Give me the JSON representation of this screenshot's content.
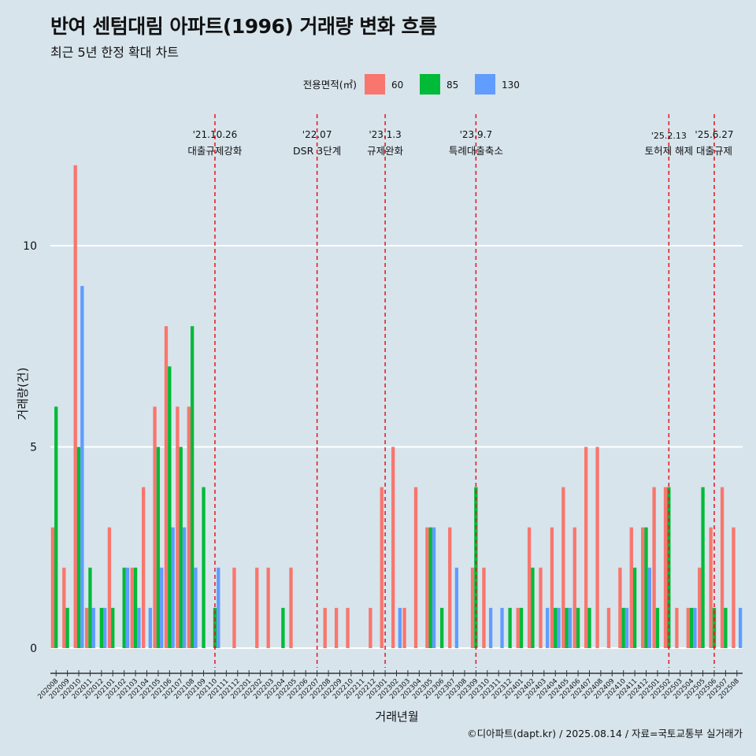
{
  "title": "반여 센텀대림 아파트(1996) 거래량 변화 흐름",
  "subtitle": "최근 5년 한정 확대 차트",
  "caption": "©디아파트(dapt.kr) / 2025.08.14 / 자료=국토교통부 실거래가",
  "colors": {
    "background": "#d7e4ec",
    "s60": "#f8766d",
    "s85": "#00ba38",
    "s130": "#619cff",
    "policy_line": "#e8141a",
    "grid": "#ffffff"
  },
  "chart_data": {
    "type": "bar",
    "xlabel": "거래년월",
    "ylabel": "거래량(건)",
    "ylim": [
      -0.5,
      12.5
    ],
    "yticks": [
      0,
      5,
      10
    ],
    "legend": {
      "title": "전용면적(㎡)",
      "position": "top"
    },
    "categories": [
      "202008",
      "202009",
      "202010",
      "202011",
      "202012",
      "202101",
      "202102",
      "202103",
      "202104",
      "202105",
      "202106",
      "202107",
      "202108",
      "202109",
      "202110",
      "202111",
      "202112",
      "202201",
      "202202",
      "202203",
      "202204",
      "202205",
      "202206",
      "202207",
      "202208",
      "202209",
      "202210",
      "202211",
      "202212",
      "202301",
      "202302",
      "202303",
      "202304",
      "202305",
      "202306",
      "202307",
      "202308",
      "202309",
      "202310",
      "202311",
      "202312",
      "202401",
      "202402",
      "202403",
      "202404",
      "202405",
      "202406",
      "202407",
      "202408",
      "202409",
      "202410",
      "202411",
      "202412",
      "202501",
      "202502",
      "202503",
      "202504",
      "202505",
      "202506",
      "202507",
      "202508"
    ],
    "series": [
      {
        "name": "60",
        "key": "s60",
        "values": [
          3,
          2,
          12,
          1,
          0,
          3,
          0,
          2,
          4,
          6,
          8,
          6,
          6,
          0,
          0,
          0,
          2,
          0,
          2,
          2,
          0,
          2,
          0,
          0,
          1,
          1,
          1,
          0,
          1,
          4,
          5,
          1,
          4,
          3,
          0,
          3,
          0,
          2,
          2,
          0,
          0,
          1,
          3,
          2,
          3,
          4,
          3,
          5,
          5,
          1,
          2,
          3,
          3,
          4,
          4,
          1,
          1,
          2,
          3,
          4,
          3
        ]
      },
      {
        "name": "85",
        "key": "s85",
        "values": [
          6,
          1,
          5,
          2,
          1,
          1,
          2,
          2,
          0,
          5,
          7,
          5,
          8,
          4,
          1,
          0,
          0,
          0,
          0,
          0,
          1,
          0,
          0,
          0,
          0,
          0,
          0,
          0,
          0,
          0,
          0,
          0,
          0,
          3,
          1,
          0,
          0,
          4,
          0,
          0,
          1,
          1,
          2,
          0,
          1,
          1,
          1,
          1,
          0,
          0,
          1,
          2,
          3,
          1,
          4,
          0,
          1,
          4,
          1,
          1,
          0
        ]
      },
      {
        "name": "130",
        "key": "s130",
        "values": [
          0,
          0,
          9,
          1,
          1,
          0,
          2,
          1,
          1,
          2,
          3,
          3,
          2,
          0,
          2,
          0,
          0,
          0,
          0,
          0,
          0,
          0,
          0,
          0,
          0,
          0,
          0,
          0,
          0,
          0,
          1,
          0,
          0,
          3,
          0,
          2,
          0,
          0,
          1,
          1,
          0,
          0,
          0,
          1,
          1,
          1,
          0,
          0,
          0,
          0,
          1,
          0,
          2,
          0,
          0,
          0,
          1,
          0,
          0,
          0,
          1
        ]
      }
    ],
    "annotations": [
      {
        "x": "202110",
        "date": "'21.10.26",
        "label": "대출규제강화"
      },
      {
        "x": "202207",
        "date": "'22.07",
        "label": "DSR 3단계"
      },
      {
        "x": "202301",
        "date": "'23.1.3",
        "label": "규제완화"
      },
      {
        "x": "202309",
        "date": "'23.9.7",
        "label": "특례대출축소"
      },
      {
        "x": "202502",
        "date": "'25.2.13",
        "label": "토허제 해제"
      },
      {
        "x": "202506",
        "date": "'25.6.27",
        "label": "대출규제"
      }
    ]
  }
}
